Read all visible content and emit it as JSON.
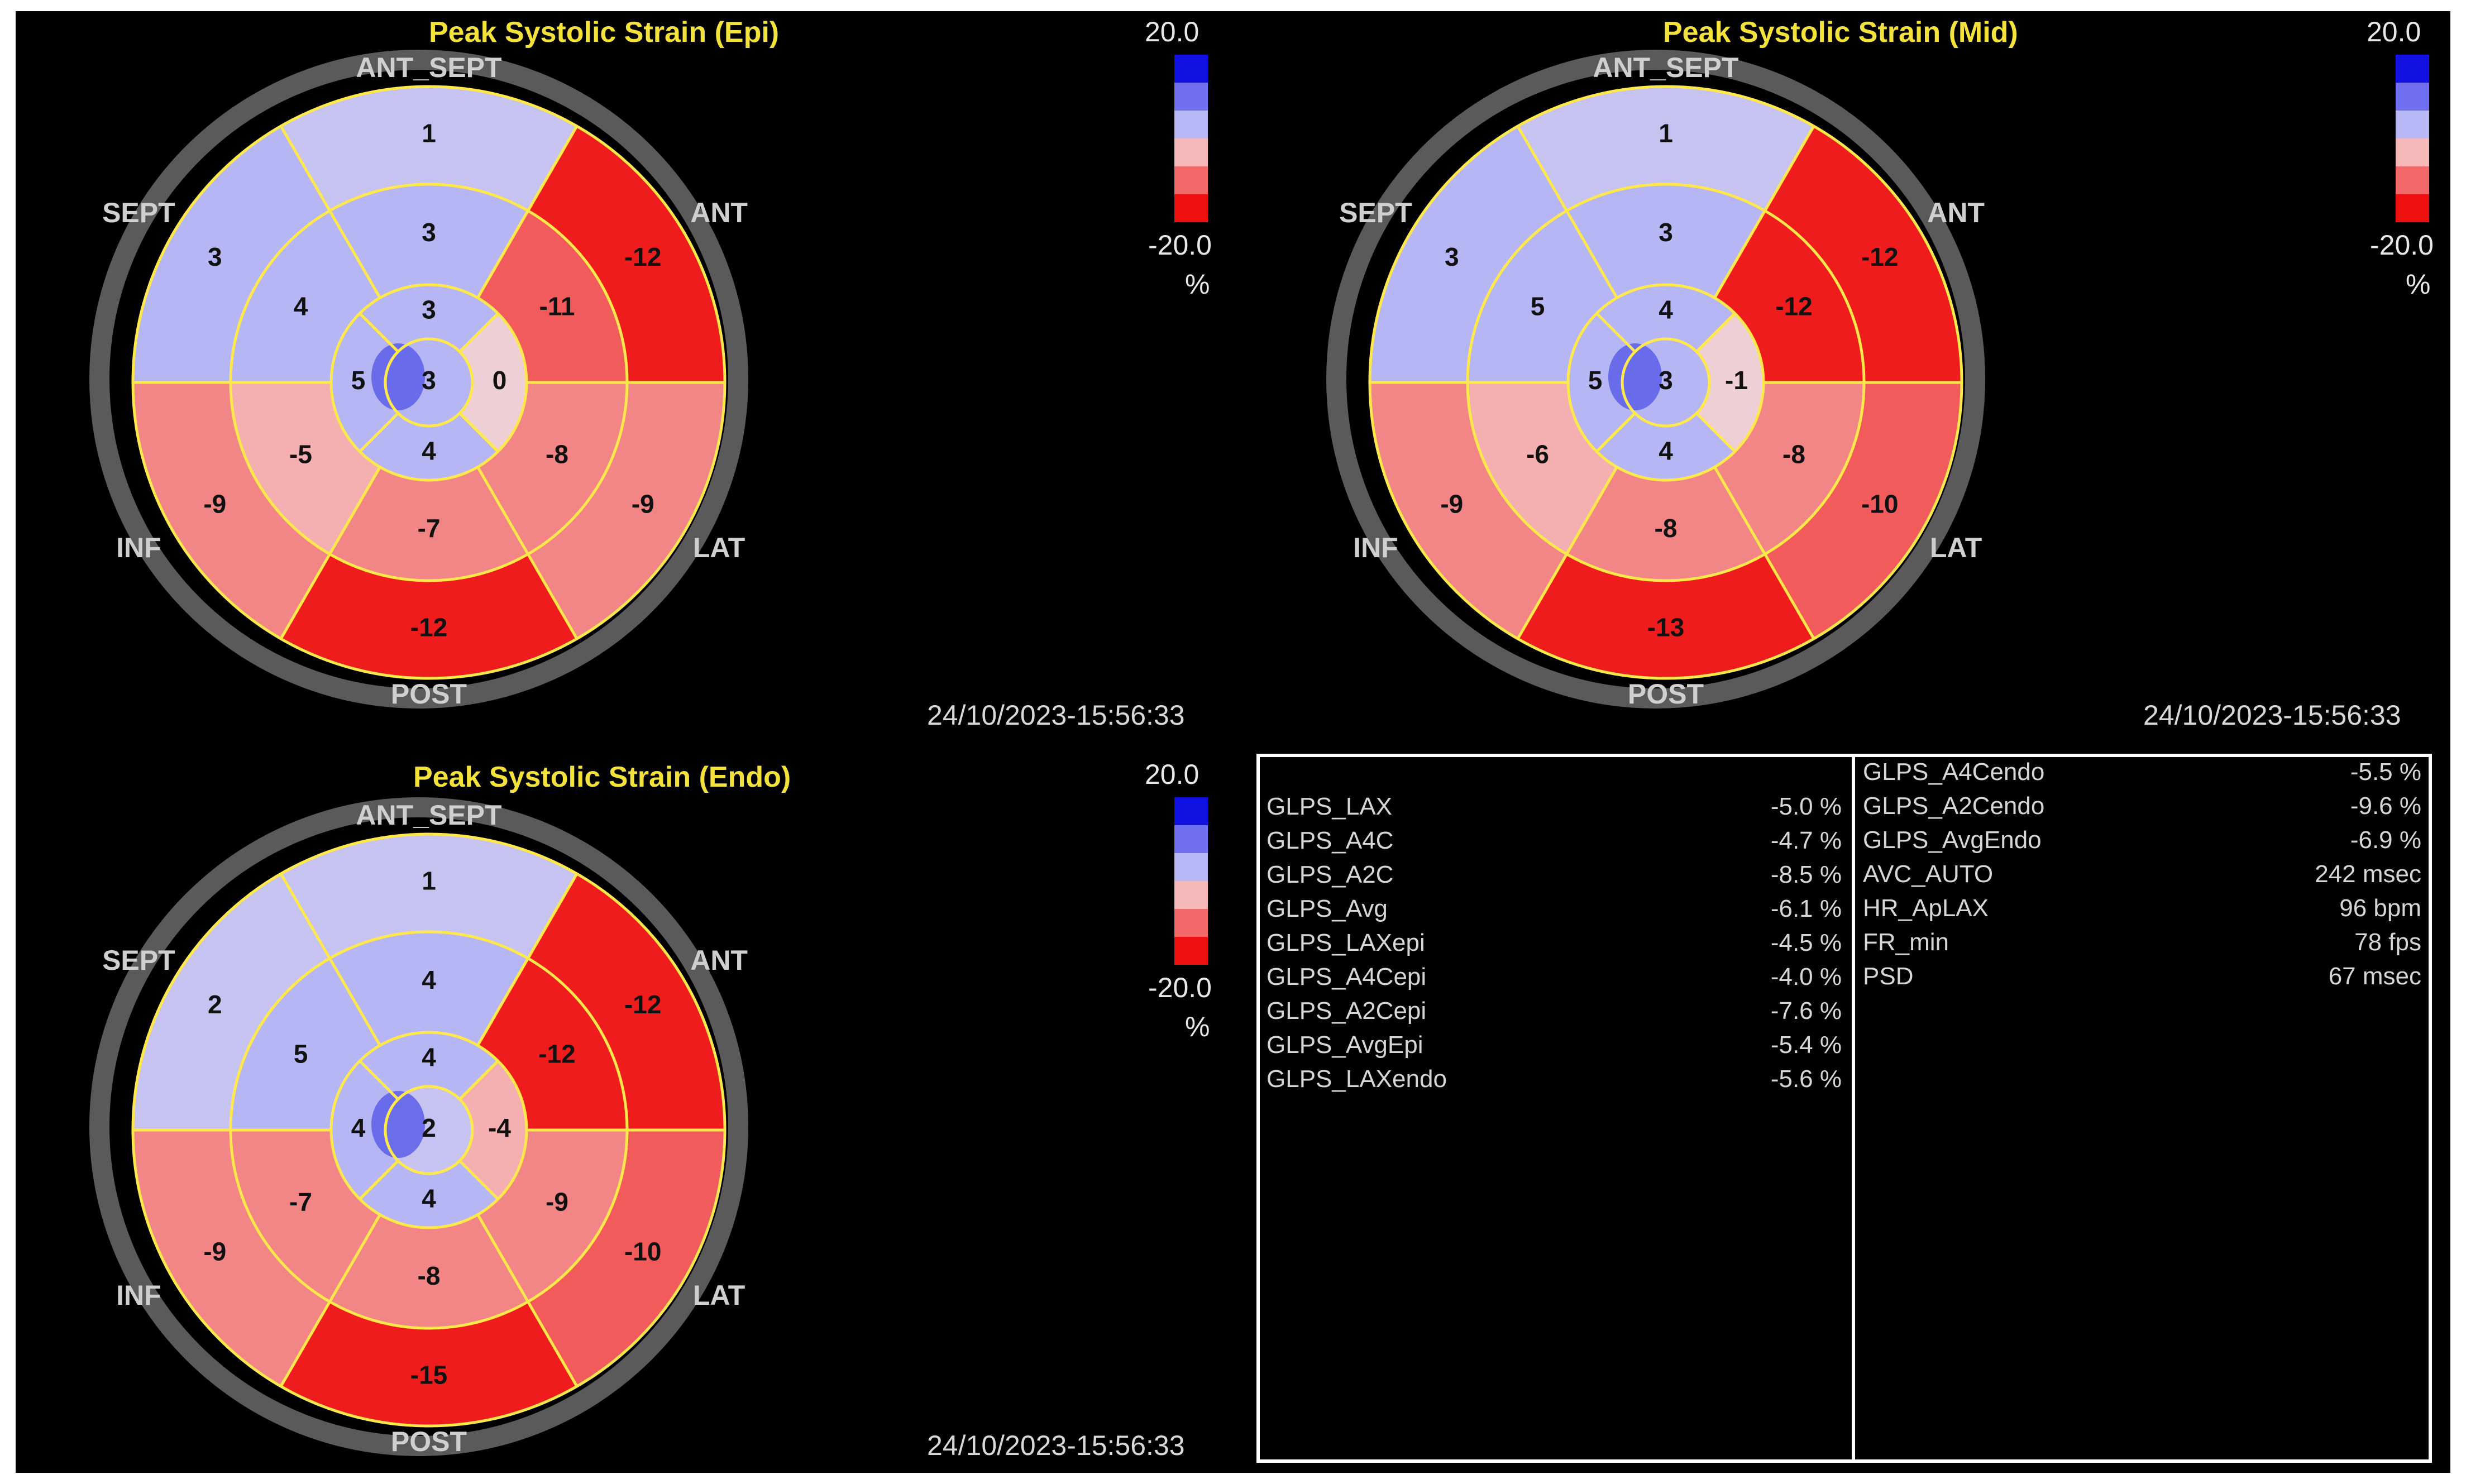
{
  "colors": {
    "background": "#000000",
    "title": "#f2e23a",
    "grid": "#ffe94a",
    "ring": "#5a5a5a",
    "text_light": "#d6d6d6",
    "colorbar": [
      "#1010e0",
      "#6f6ff0",
      "#b8b8f6",
      "#f5b9b9",
      "#f36868",
      "#ee0f0f"
    ]
  },
  "wall_labels": {
    "ant_sept": "ANT_SEPT",
    "ant": "ANT",
    "lat": "LAT",
    "post": "POST",
    "inf": "INF",
    "sept": "SEPT"
  },
  "bullseyes": [
    {
      "title": "Peak Systolic Strain (Epi)",
      "scale_max": "20.0",
      "scale_min": "-20.0",
      "unit": "%",
      "timestamp": "24/10/2023-15:56:33",
      "segments": {
        "basal": [
          "1",
          "-12",
          "-9",
          "-12",
          "-9",
          "3"
        ],
        "mid": [
          "3",
          "-11",
          "-8",
          "-7",
          "-5",
          "4"
        ],
        "apical": [
          "3",
          "0",
          "4",
          "5"
        ],
        "apex": "3"
      }
    },
    {
      "title": "Peak Systolic Strain (Mid)",
      "scale_max": "20.0",
      "scale_min": "-20.0",
      "unit": "%",
      "timestamp": "24/10/2023-15:56:33",
      "segments": {
        "basal": [
          "1",
          "-12",
          "-10",
          "-13",
          "-9",
          "3"
        ],
        "mid": [
          "3",
          "-12",
          "-8",
          "-8",
          "-6",
          "5"
        ],
        "apical": [
          "4",
          "-1",
          "4",
          "5"
        ],
        "apex": "3"
      }
    },
    {
      "title": "Peak Systolic Strain (Endo)",
      "scale_max": "20.0",
      "scale_min": "-20.0",
      "unit": "%",
      "timestamp": "24/10/2023-15:56:33",
      "segments": {
        "basal": [
          "1",
          "-12",
          "-10",
          "-15",
          "-9",
          "2"
        ],
        "mid": [
          "4",
          "-12",
          "-9",
          "-8",
          "-7",
          "5"
        ],
        "apical": [
          "4",
          "-4",
          "4",
          "4"
        ],
        "apex": "2"
      }
    }
  ],
  "stats": {
    "left": [
      {
        "key": "GLPS_LAX",
        "value": "-5.0 %"
      },
      {
        "key": "GLPS_A4C",
        "value": "-4.7 %"
      },
      {
        "key": "GLPS_A2C",
        "value": "-8.5 %"
      },
      {
        "key": "GLPS_Avg",
        "value": "-6.1 %"
      },
      {
        "key": "GLPS_LAXepi",
        "value": "-4.5 %"
      },
      {
        "key": "GLPS_A4Cepi",
        "value": "-4.0 %"
      },
      {
        "key": "GLPS_A2Cepi",
        "value": "-7.6 %"
      },
      {
        "key": "GLPS_AvgEpi",
        "value": "-5.4 %"
      },
      {
        "key": "GLPS_LAXendo",
        "value": "-5.6 %"
      }
    ],
    "right": [
      {
        "key": "GLPS_A4Cendo",
        "value": "-5.5 %"
      },
      {
        "key": "GLPS_A2Cendo",
        "value": "-9.6 %"
      },
      {
        "key": "GLPS_AvgEndo",
        "value": "-6.9 %"
      },
      {
        "key": "AVC_AUTO",
        "value": "242 msec"
      },
      {
        "key": "HR_ApLAX",
        "value": "96 bpm"
      },
      {
        "key": "FR_min",
        "value": "78 fps"
      },
      {
        "key": "PSD",
        "value": "67 msec"
      }
    ]
  }
}
